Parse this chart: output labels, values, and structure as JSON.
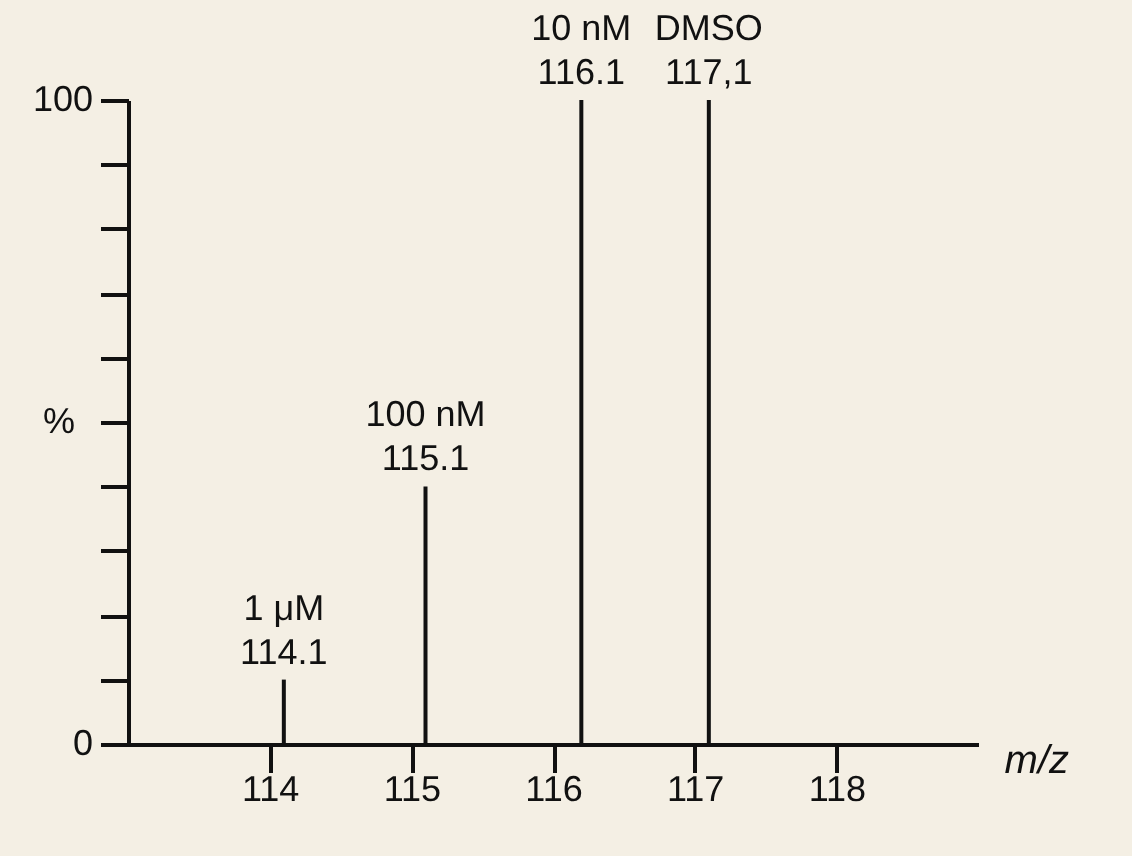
{
  "chart_data": {
    "type": "bar",
    "x": [
      114.1,
      115.1,
      116.2,
      117.1
    ],
    "values": [
      10,
      40,
      100,
      100
    ],
    "color": "#111111",
    "xlabel": "m/z",
    "ylabel": "%",
    "xlim": [
      113,
      119
    ],
    "xticks": [
      114,
      115,
      116,
      117,
      118
    ],
    "ylim": [
      0,
      100
    ],
    "yticks": [
      0,
      {
        "value": 10,
        "label": null
      },
      {
        "value": 20,
        "label": null
      },
      {
        "value": 30,
        "label": null
      },
      {
        "value": 40,
        "label": null
      },
      {
        "value": 50,
        "label": null
      },
      {
        "value": 60,
        "label": null
      },
      {
        "value": 70,
        "label": null
      },
      {
        "value": 80,
        "label": null
      },
      {
        "value": 90,
        "label": null
      },
      100
    ],
    "grid": false,
    "annotations": [
      {
        "text": "1 μM\n114.1",
        "x": 114.1,
        "y": 10
      },
      {
        "text": "100 nM\n115.1",
        "x": 115.1,
        "y": 40
      },
      {
        "text": "10 nM\n116.1",
        "x": 116.2,
        "y": 100
      },
      {
        "text": "DMSO\n117,1",
        "x": 117.1,
        "y": 100
      }
    ]
  }
}
